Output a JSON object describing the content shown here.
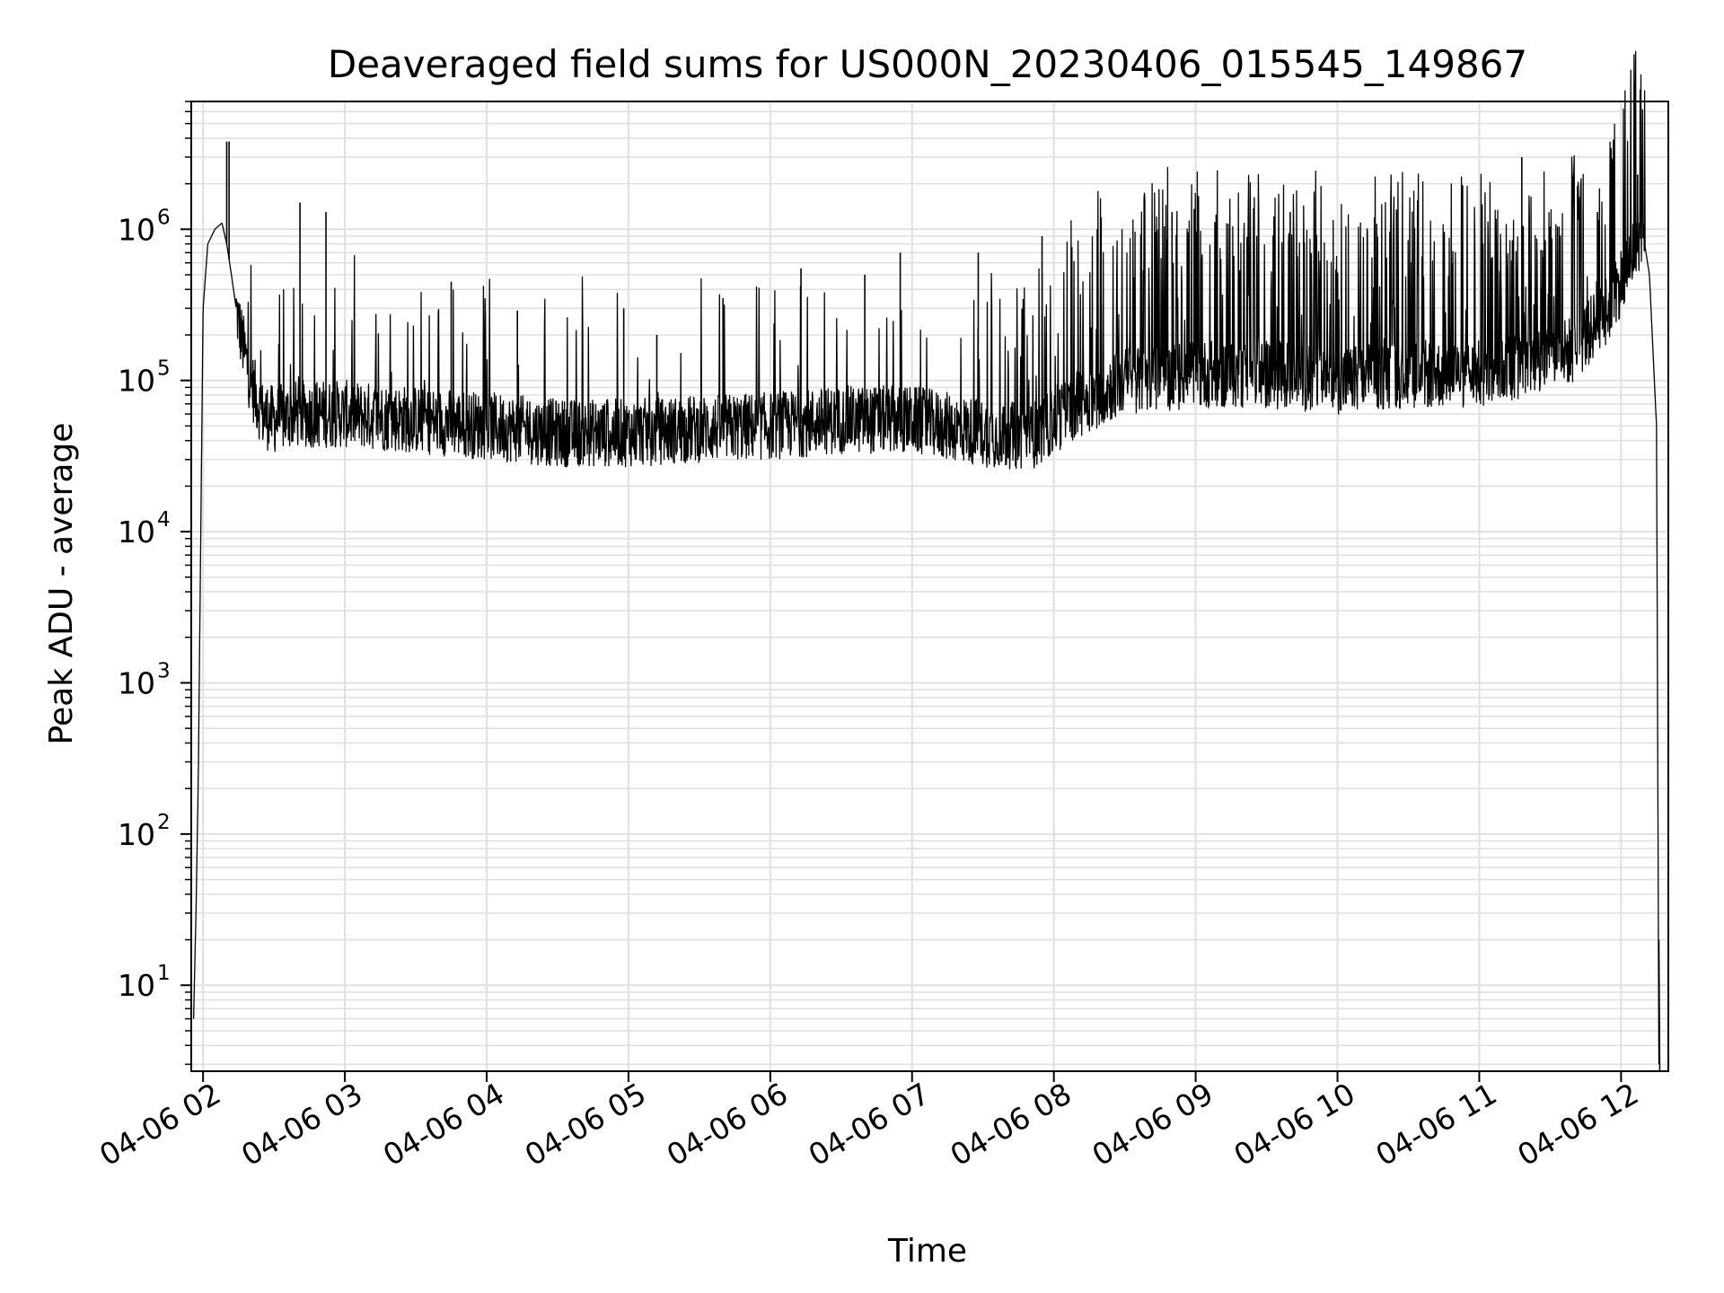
{
  "chart_data": {
    "type": "line",
    "title": "Deaveraged field sums for US000N_20230406_015545_149867",
    "xlabel": "Time",
    "ylabel": "Peak ADU - average",
    "y_scale": "log",
    "ylim": [
      2.7,
      7000000
    ],
    "xlim": [
      "04-06 01:55",
      "04-06 12:20"
    ],
    "grid": true,
    "line_color": "#000000",
    "grid_color": "#e0e0e0",
    "x_ticks": [
      {
        "t": "04-06 02:00",
        "label": "04-06 02"
      },
      {
        "t": "04-06 03:00",
        "label": "04-06 03"
      },
      {
        "t": "04-06 04:00",
        "label": "04-06 04"
      },
      {
        "t": "04-06 05:00",
        "label": "04-06 05"
      },
      {
        "t": "04-06 06:00",
        "label": "04-06 06"
      },
      {
        "t": "04-06 07:00",
        "label": "04-06 07"
      },
      {
        "t": "04-06 08:00",
        "label": "04-06 08"
      },
      {
        "t": "04-06 09:00",
        "label": "04-06 09"
      },
      {
        "t": "04-06 10:00",
        "label": "04-06 10"
      },
      {
        "t": "04-06 11:00",
        "label": "04-06 11"
      },
      {
        "t": "04-06 12:00",
        "label": "04-06 12"
      }
    ],
    "y_ticks": [
      {
        "value": 10,
        "base": "10",
        "exp": "1"
      },
      {
        "value": 100,
        "base": "10",
        "exp": "2"
      },
      {
        "value": 1000,
        "base": "10",
        "exp": "3"
      },
      {
        "value": 10000,
        "base": "10",
        "exp": "4"
      },
      {
        "value": 100000,
        "base": "10",
        "exp": "5"
      },
      {
        "value": 1000000,
        "base": "10",
        "exp": "6"
      }
    ],
    "series": [
      {
        "x": [
          "04-06 01:56",
          "04-06 01:57",
          "04-06 01:58",
          "04-06 02:00",
          "04-06 02:02",
          "04-06 02:05",
          "04-06 02:08",
          "04-06 02:10",
          "04-06 02:12",
          "04-06 02:14",
          "04-06 02:16",
          "04-06 02:20",
          "04-06 02:25",
          "04-06 02:30",
          "04-06 02:40",
          "04-06 03:00",
          "04-06 03:30",
          "04-06 04:00",
          "04-06 04:30",
          "04-06 05:00",
          "04-06 05:30",
          "04-06 06:00",
          "04-06 06:30",
          "04-06 07:00",
          "04-06 07:30",
          "04-06 07:50",
          "04-06 08:10",
          "04-06 08:30",
          "04-06 09:00",
          "04-06 09:30",
          "04-06 10:00",
          "04-06 10:30",
          "04-06 11:00",
          "04-06 11:20",
          "04-06 11:40",
          "04-06 11:55",
          "04-06 12:05",
          "04-06 12:09",
          "04-06 12:12",
          "04-06 12:15",
          "04-06 12:16"
        ],
        "y": [
          6,
          30,
          250,
          300000,
          800000,
          1000000,
          1100000,
          800000,
          500000,
          300000,
          200000,
          100000,
          60000,
          55000,
          60000,
          60000,
          55000,
          50000,
          45000,
          45000,
          48000,
          50000,
          55000,
          55000,
          45000,
          42000,
          70000,
          100000,
          110000,
          110000,
          100000,
          110000,
          110000,
          130000,
          160000,
          300000,
          700000,
          1000000,
          500000,
          50000,
          3
        ]
      }
    ],
    "spikes": [
      {
        "x": "04-06 02:10",
        "y": 3800000
      },
      {
        "x": "04-06 02:11",
        "y": 3800000
      },
      {
        "x": "04-06 02:41",
        "y": 1500000
      },
      {
        "x": "04-06 02:52",
        "y": 1300000
      },
      {
        "x": "04-06 03:45",
        "y": 450000
      },
      {
        "x": "04-06 04:13",
        "y": 290000
      },
      {
        "x": "04-06 04:58",
        "y": 300000
      },
      {
        "x": "04-06 05:12",
        "y": 200000
      },
      {
        "x": "04-06 05:40",
        "y": 350000
      },
      {
        "x": "04-06 06:13",
        "y": 550000
      },
      {
        "x": "04-06 06:40",
        "y": 500000
      },
      {
        "x": "04-06 06:55",
        "y": 700000
      },
      {
        "x": "04-06 07:28",
        "y": 700000
      },
      {
        "x": "04-06 07:55",
        "y": 900000
      },
      {
        "x": "04-06 08:20",
        "y": 1200000
      },
      {
        "x": "04-06 08:50",
        "y": 1300000
      },
      {
        "x": "04-06 09:40",
        "y": 1300000
      },
      {
        "x": "04-06 10:25",
        "y": 1350000
      },
      {
        "x": "04-06 11:18",
        "y": 3000000
      },
      {
        "x": "04-06 11:50",
        "y": 1300000
      },
      {
        "x": "04-06 12:07",
        "y": 2300000
      }
    ]
  }
}
